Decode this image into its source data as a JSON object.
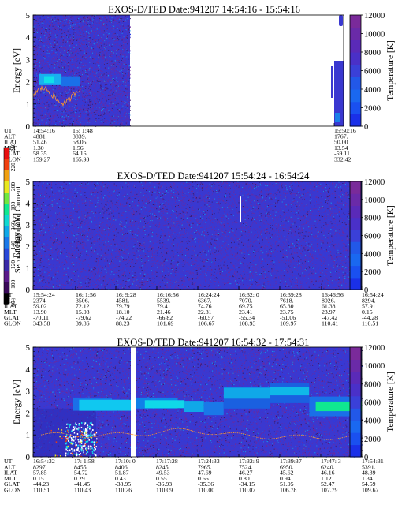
{
  "panels": [
    {
      "title": "EXOS-D/TED   Date:941207   14:54:16 - 15:54:16",
      "ylabel": "Energy [eV]",
      "rlabel": "Temperature [K]",
      "yticks": [
        "0",
        "1",
        "2",
        "3",
        "4",
        "5"
      ],
      "rticks": [
        "0",
        "2000",
        "4000",
        "6000",
        "8000",
        "10000",
        "12000"
      ],
      "row_labels": [
        "UT",
        "ALT",
        "ILAT",
        "MLT",
        "GLAT",
        "GLON"
      ],
      "columns": [
        {
          "values": [
            "14:54:16",
            "4881.",
            "51.46",
            "1.30",
            "58.35",
            "159.27"
          ]
        },
        {
          "values": [
            "15: 1:48",
            "3839.",
            "58.05",
            "1.56",
            "64.16",
            "165.93"
          ]
        },
        {
          "values": [
            "15:50:16",
            "1767.",
            "50.00",
            "13.54",
            "-59.11",
            "332.42"
          ]
        }
      ]
    },
    {
      "title": "EXOS-D/TED   Date:941207   15:54:24 - 16:54:24",
      "ylabel": "Energy [eV]",
      "rlabel": "Temperature [K]",
      "yticks": [
        "0",
        "1",
        "2",
        "3",
        "4",
        "5"
      ],
      "rticks": [
        "0",
        "2000",
        "4000",
        "6000",
        "8000",
        "10000",
        "12000"
      ],
      "row_labels": [
        "UT",
        "ALT",
        "ILAT",
        "MLT",
        "GLAT",
        "GLON"
      ],
      "columns": [
        {
          "values": [
            "15:54:24",
            "2374.",
            "59.02",
            "13.90",
            "-70.11",
            "343.58"
          ]
        },
        {
          "values": [
            "16: 1:56",
            "3506.",
            "72.12",
            "15.08",
            "-79.62",
            "39.86"
          ]
        },
        {
          "values": [
            "16: 9:28",
            "4581.",
            "79.79",
            "18.10",
            "-74.22",
            "88.23"
          ]
        },
        {
          "values": [
            "16:16:56",
            "5539.",
            "79.41",
            "21.46",
            "-66.82",
            "101.69"
          ]
        },
        {
          "values": [
            "16:24:24",
            "6367.",
            "74.76",
            "22.81",
            "-60.57",
            "106.67"
          ]
        },
        {
          "values": [
            "16:32: 0",
            "7070.",
            "69.75",
            "23.41",
            "-55.34",
            "108.93"
          ]
        },
        {
          "values": [
            "16:39:28",
            "7618.",
            "65.30",
            "23.75",
            "-51.06",
            "109.97"
          ]
        },
        {
          "values": [
            "16:46:56",
            "8026.",
            "61.38",
            "23.97",
            "-47.42",
            "110.41"
          ]
        },
        {
          "values": [
            "16:54:24",
            "8294.",
            "57.91",
            "0.15",
            "-44.28",
            "110.51"
          ]
        }
      ]
    },
    {
      "title": "EXOS-D/TED   Date:941207   16:54:32 - 17:54:31",
      "ylabel": "Energy [eV]",
      "rlabel": "Temperature [K]",
      "yticks": [
        "0",
        "1",
        "2",
        "3",
        "4",
        "5"
      ],
      "rticks": [
        "0",
        "2000",
        "4000",
        "6000",
        "8000",
        "10000",
        "12000"
      ],
      "row_labels": [
        "UT",
        "ALT",
        "ILAT",
        "MLT",
        "GLAT",
        "GLON"
      ],
      "columns": [
        {
          "values": [
            "16:54:32",
            "8297.",
            "57.85",
            "0.15",
            "-44.23",
            "110.51"
          ]
        },
        {
          "values": [
            "17: 1:58",
            "8455.",
            "54.72",
            "0.29",
            "-41.45",
            "110.43"
          ]
        },
        {
          "values": [
            "17:10: 0",
            "8406.",
            "51.87",
            "0.43",
            "-38.95",
            "110.26"
          ]
        },
        {
          "values": [
            "17:17:28",
            "8245.",
            "49.53",
            "0.55",
            "-36.93",
            "110.09"
          ]
        },
        {
          "values": [
            "17:24:33",
            "7965.",
            "47.69",
            "0.66",
            "-35.36",
            "110.00"
          ]
        },
        {
          "values": [
            "17:32: 9",
            "7524.",
            "46.27",
            "0.80",
            "-34.15",
            "110.07"
          ]
        },
        {
          "values": [
            "17:39:37",
            "6950.",
            "45.62",
            "0.94",
            "51.95",
            "106.78"
          ]
        },
        {
          "values": [
            "17:47: 3",
            "6240.",
            "46.16",
            "1.12",
            "52.47",
            "107.79"
          ]
        },
        {
          "values": [
            "17:54:31",
            "5391.",
            "48.39",
            "1.34",
            "54.59",
            "109.67"
          ]
        }
      ]
    }
  ],
  "colorbar": {
    "label": "Second Harmonic Current",
    "ticks": [
      "80",
      "100",
      "120",
      "140",
      "160",
      "180",
      "200",
      "220",
      "240"
    ]
  },
  "chart_data": [
    {
      "type": "heatmap",
      "title": "EXOS-D/TED   Date:941207   14:54:16 - 15:54:16",
      "ylabel": "Energy [eV]",
      "y2label": "Temperature [K]",
      "ylim": [
        0,
        5
      ],
      "y2lim": [
        0,
        12000
      ],
      "colorbar_label": "Second Harmonic Current",
      "colorbar_range": [
        80,
        240
      ],
      "x_ticks": [
        "14:54:16",
        "15: 1:48",
        "15:50:16"
      ]
    },
    {
      "type": "heatmap",
      "title": "EXOS-D/TED   Date:941207   15:54:24 - 16:54:24",
      "ylabel": "Energy [eV]",
      "y2label": "Temperature [K]",
      "ylim": [
        0,
        5
      ],
      "y2lim": [
        0,
        12000
      ],
      "colorbar_label": "Second Harmonic Current",
      "colorbar_range": [
        80,
        240
      ],
      "x_ticks": [
        "15:54:24",
        "16: 1:56",
        "16: 9:28",
        "16:16:56",
        "16:24:24",
        "16:32: 0",
        "16:39:28",
        "16:46:56",
        "16:54:24"
      ]
    },
    {
      "type": "heatmap",
      "title": "EXOS-D/TED   Date:941207   16:54:32 - 17:54:31",
      "ylabel": "Energy [eV]",
      "y2label": "Temperature [K]",
      "ylim": [
        0,
        5
      ],
      "y2lim": [
        0,
        12000
      ],
      "colorbar_label": "Second Harmonic Current",
      "colorbar_range": [
        80,
        240
      ],
      "x_ticks": [
        "16:54:32",
        "17: 1:58",
        "17:10: 0",
        "17:17:28",
        "17:24:33",
        "17:32: 9",
        "17:39:37",
        "17:47: 3",
        "17:54:31"
      ]
    }
  ]
}
